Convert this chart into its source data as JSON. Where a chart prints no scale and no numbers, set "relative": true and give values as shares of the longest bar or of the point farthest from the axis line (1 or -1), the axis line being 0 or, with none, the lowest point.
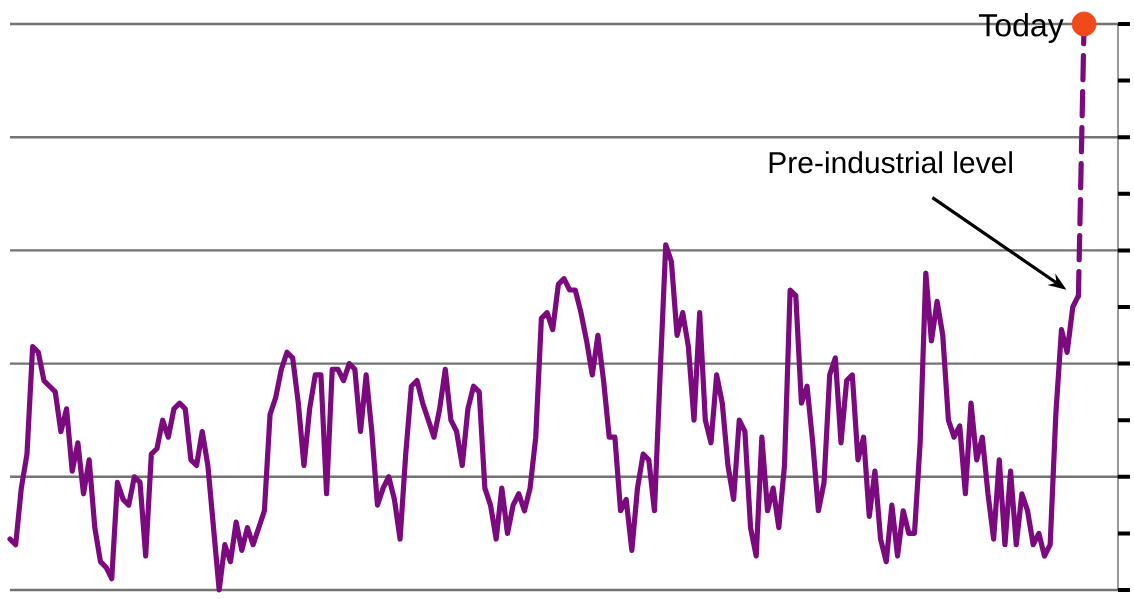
{
  "chart_data": {
    "type": "line",
    "relative": true,
    "grid": "y",
    "categories": [
      null,
      null,
      null,
      null,
      null,
      null,
      null,
      null,
      null,
      null,
      null,
      null,
      null,
      null,
      null,
      null,
      null,
      null,
      null,
      null,
      null,
      null,
      null,
      null,
      null,
      null,
      null,
      null,
      null,
      null,
      null,
      null,
      null,
      null,
      null,
      null,
      null,
      null,
      null,
      null,
      null,
      null,
      null,
      null,
      null,
      null,
      null,
      null,
      null,
      null,
      null,
      null,
      null,
      null,
      null,
      null,
      null,
      null,
      null,
      null,
      null,
      null,
      null,
      null,
      null,
      null,
      null,
      null,
      null,
      null,
      null,
      null,
      null,
      null,
      null,
      null,
      null,
      null,
      null,
      null,
      null,
      null,
      null,
      null,
      null,
      null,
      null,
      null,
      null,
      null,
      null,
      null,
      null,
      null,
      null,
      null,
      null,
      null,
      null,
      null,
      null,
      null,
      null,
      null,
      null,
      null,
      null,
      null,
      null,
      null,
      null,
      null,
      null,
      null,
      null,
      null,
      null,
      null,
      null,
      null,
      null,
      null,
      null,
      null,
      null,
      null,
      null,
      null,
      null,
      null,
      null,
      null,
      null,
      null,
      null,
      null,
      null,
      null,
      null,
      null,
      null,
      null,
      null,
      null,
      null,
      null,
      null,
      null,
      null,
      null,
      null,
      null,
      null,
      null,
      null,
      null,
      null,
      null,
      null,
      null,
      null,
      null,
      null,
      null,
      null,
      null,
      null,
      null,
      null,
      null,
      null,
      null,
      null,
      null,
      null,
      null,
      null,
      null,
      null,
      null,
      null,
      null,
      null,
      null,
      null,
      null,
      null,
      null,
      null,
      null,
      null
    ],
    "series": [
      {
        "color": "#7b0a7e",
        "line_style": "solid",
        "values": [
          0.09,
          0.08,
          0.18,
          0.24,
          0.43,
          0.42,
          0.37,
          0.36,
          0.35,
          0.28,
          0.32,
          0.21,
          0.26,
          0.17,
          0.23,
          0.11,
          0.05,
          0.04,
          0.02,
          0.19,
          0.16,
          0.15,
          0.2,
          0.19,
          0.06,
          0.24,
          0.25,
          0.3,
          0.27,
          0.32,
          0.33,
          0.32,
          0.23,
          0.22,
          0.28,
          0.22,
          0.11,
          0.0,
          0.08,
          0.05,
          0.12,
          0.07,
          0.11,
          0.08,
          0.11,
          0.14,
          0.31,
          0.34,
          0.39,
          0.42,
          0.41,
          0.33,
          0.22,
          0.32,
          0.38,
          0.38,
          0.17,
          0.39,
          0.39,
          0.37,
          0.4,
          0.39,
          0.28,
          0.38,
          0.28,
          0.15,
          0.18,
          0.2,
          0.16,
          0.09,
          0.24,
          0.36,
          0.37,
          0.33,
          0.3,
          0.27,
          0.32,
          0.39,
          0.3,
          0.28,
          0.22,
          0.32,
          0.36,
          0.35,
          0.18,
          0.15,
          0.09,
          0.18,
          0.1,
          0.15,
          0.17,
          0.14,
          0.18,
          0.27,
          0.48,
          0.49,
          0.46,
          0.54,
          0.55,
          0.53,
          0.53,
          0.49,
          0.44,
          0.38,
          0.45,
          0.37,
          0.27,
          0.27,
          0.14,
          0.16,
          0.07,
          0.18,
          0.24,
          0.23,
          0.14,
          0.38,
          0.61,
          0.58,
          0.45,
          0.49,
          0.43,
          0.3,
          0.49,
          0.3,
          0.26,
          0.38,
          0.33,
          0.22,
          0.16,
          0.3,
          0.28,
          0.11,
          0.06,
          0.27,
          0.14,
          0.18,
          0.11,
          0.22,
          0.53,
          0.52,
          0.33,
          0.36,
          0.26,
          0.14,
          0.19,
          0.38,
          0.41,
          0.26,
          0.37,
          0.38,
          0.23,
          0.27,
          0.13,
          0.21,
          0.09,
          0.05,
          0.15,
          0.06,
          0.14,
          0.1,
          0.1,
          0.26,
          0.56,
          0.44,
          0.51,
          0.45,
          0.3,
          0.27,
          0.29,
          0.17,
          0.33,
          0.23,
          0.27,
          0.17,
          0.09,
          0.23,
          0.08,
          0.21,
          0.08,
          0.17,
          0.14,
          0.08,
          0.1,
          0.06,
          0.08,
          0.31,
          0.46,
          0.42,
          0.5,
          0.52,
          null
        ]
      },
      {
        "color": "#7b0a7e",
        "line_style": "dashed",
        "values": [
          null,
          null,
          null,
          null,
          null,
          null,
          null,
          null,
          null,
          null,
          null,
          null,
          null,
          null,
          null,
          null,
          null,
          null,
          null,
          null,
          null,
          null,
          null,
          null,
          null,
          null,
          null,
          null,
          null,
          null,
          null,
          null,
          null,
          null,
          null,
          null,
          null,
          null,
          null,
          null,
          null,
          null,
          null,
          null,
          null,
          null,
          null,
          null,
          null,
          null,
          null,
          null,
          null,
          null,
          null,
          null,
          null,
          null,
          null,
          null,
          null,
          null,
          null,
          null,
          null,
          null,
          null,
          null,
          null,
          null,
          null,
          null,
          null,
          null,
          null,
          null,
          null,
          null,
          null,
          null,
          null,
          null,
          null,
          null,
          null,
          null,
          null,
          null,
          null,
          null,
          null,
          null,
          null,
          null,
          null,
          null,
          null,
          null,
          null,
          null,
          null,
          null,
          null,
          null,
          null,
          null,
          null,
          null,
          null,
          null,
          null,
          null,
          null,
          null,
          null,
          null,
          null,
          null,
          null,
          null,
          null,
          null,
          null,
          null,
          null,
          null,
          null,
          null,
          null,
          null,
          null,
          null,
          null,
          null,
          null,
          null,
          null,
          null,
          null,
          null,
          null,
          null,
          null,
          null,
          null,
          null,
          null,
          null,
          null,
          null,
          null,
          null,
          null,
          null,
          null,
          null,
          null,
          null,
          null,
          null,
          null,
          null,
          null,
          null,
          null,
          null,
          null,
          null,
          null,
          null,
          null,
          null,
          null,
          null,
          null,
          null,
          null,
          null,
          null,
          null,
          null,
          null,
          null,
          null,
          null,
          null,
          null,
          null,
          null,
          0.52,
          1.0
        ],
        "marker": "circle",
        "colors": [
          null,
          null,
          null,
          null,
          null,
          null,
          null,
          null,
          null,
          null,
          null,
          null,
          null,
          null,
          null,
          null,
          null,
          null,
          null,
          null,
          null,
          null,
          null,
          null,
          null,
          null,
          null,
          null,
          null,
          null,
          null,
          null,
          null,
          null,
          null,
          null,
          null,
          null,
          null,
          null,
          null,
          null,
          null,
          null,
          null,
          null,
          null,
          null,
          null,
          null,
          null,
          null,
          null,
          null,
          null,
          null,
          null,
          null,
          null,
          null,
          null,
          null,
          null,
          null,
          null,
          null,
          null,
          null,
          null,
          null,
          null,
          null,
          null,
          null,
          null,
          null,
          null,
          null,
          null,
          null,
          null,
          null,
          null,
          null,
          null,
          null,
          null,
          null,
          null,
          null,
          null,
          null,
          null,
          null,
          null,
          null,
          null,
          null,
          null,
          null,
          null,
          null,
          null,
          null,
          null,
          null,
          null,
          null,
          null,
          null,
          null,
          null,
          null,
          null,
          null,
          null,
          null,
          null,
          null,
          null,
          null,
          null,
          null,
          null,
          null,
          null,
          null,
          null,
          null,
          null,
          null,
          null,
          null,
          null,
          null,
          null,
          null,
          null,
          null,
          null,
          null,
          null,
          null,
          null,
          null,
          null,
          null,
          null,
          null,
          null,
          null,
          null,
          null,
          null,
          null,
          null,
          null,
          null,
          null,
          null,
          null,
          null,
          null,
          null,
          null,
          null,
          null,
          null,
          null,
          null,
          null,
          null,
          null,
          null,
          null,
          null,
          null,
          null,
          null,
          null,
          null,
          null,
          null,
          null,
          null,
          null,
          null,
          null,
          null,
          null,
          "#f04a1c"
        ]
      }
    ],
    "annotations": [
      "Today",
      "Pre-industrial level"
    ]
  }
}
